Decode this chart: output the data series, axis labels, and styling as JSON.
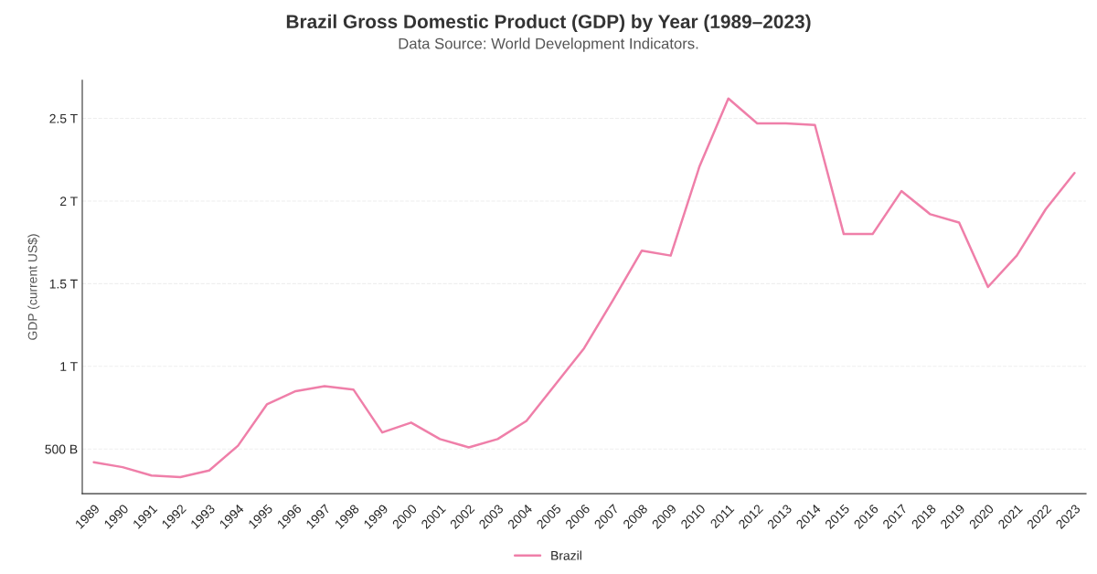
{
  "chart_data": {
    "type": "line",
    "title": "Brazil Gross Domestic Product (GDP) by Year (1989–2023)",
    "subtitle": "Data Source: World Development Indicators.",
    "ylabel": "GDP (current US$)",
    "categories": [
      "1989",
      "1990",
      "1991",
      "1992",
      "1993",
      "1994",
      "1995",
      "1996",
      "1997",
      "1998",
      "1999",
      "2000",
      "2001",
      "2002",
      "2003",
      "2004",
      "2005",
      "2006",
      "2007",
      "2008",
      "2009",
      "2010",
      "2011",
      "2012",
      "2013",
      "2014",
      "2015",
      "2016",
      "2017",
      "2018",
      "2019",
      "2020",
      "2021",
      "2022",
      "2023"
    ],
    "series": [
      {
        "name": "Brazil",
        "color": "#ef7fa9",
        "values": [
          420000000000,
          390000000000,
          340000000000,
          330000000000,
          370000000000,
          520000000000,
          770000000000,
          850000000000,
          880000000000,
          860000000000,
          600000000000,
          660000000000,
          560000000000,
          510000000000,
          560000000000,
          670000000000,
          890000000000,
          1110000000000,
          1400000000000,
          1700000000000,
          1670000000000,
          2210000000000,
          2620000000000,
          2470000000000,
          2470000000000,
          2460000000000,
          1800000000000,
          1800000000000,
          2060000000000,
          1920000000000,
          1870000000000,
          1480000000000,
          1670000000000,
          1950000000000,
          2170000000000
        ]
      }
    ],
    "ylim": [
      230000000000,
      2730000000000
    ],
    "yticks": [
      {
        "value": 500000000000,
        "label": "500 B"
      },
      {
        "value": 1000000000000,
        "label": "1 T"
      },
      {
        "value": 1500000000000,
        "label": "1.5 T"
      },
      {
        "value": 2000000000000,
        "label": "2 T"
      },
      {
        "value": 2500000000000,
        "label": "2.5 T"
      }
    ],
    "grid": "y",
    "legend": "bottom",
    "marker": "none",
    "line_style": "solid"
  }
}
